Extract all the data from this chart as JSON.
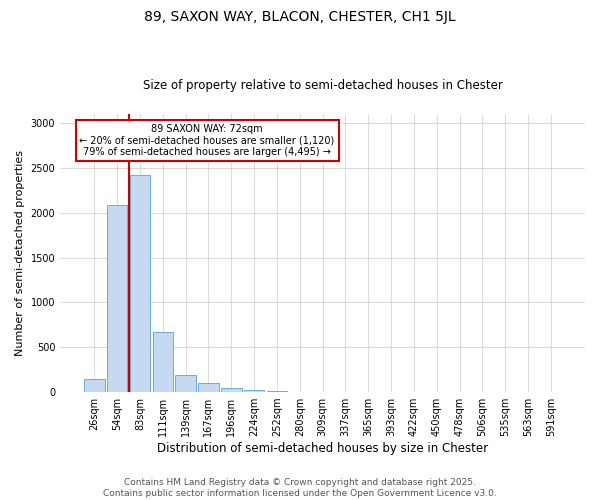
{
  "title": "89, SAXON WAY, BLACON, CHESTER, CH1 5JL",
  "subtitle": "Size of property relative to semi-detached houses in Chester",
  "xlabel": "Distribution of semi-detached houses by size in Chester",
  "ylabel": "Number of semi-detached properties",
  "bar_labels": [
    "26sqm",
    "54sqm",
    "83sqm",
    "111sqm",
    "139sqm",
    "167sqm",
    "196sqm",
    "224sqm",
    "252sqm",
    "280sqm",
    "309sqm",
    "337sqm",
    "365sqm",
    "393sqm",
    "422sqm",
    "450sqm",
    "478sqm",
    "506sqm",
    "535sqm",
    "563sqm",
    "591sqm"
  ],
  "bar_values": [
    150,
    2090,
    2420,
    670,
    185,
    100,
    50,
    20,
    10,
    5,
    2,
    1,
    1,
    0,
    0,
    0,
    0,
    0,
    0,
    0,
    0
  ],
  "bar_color": "#c5d9f0",
  "bar_edge_color": "#6aaed6",
  "property_size": 72,
  "annotation_title": "89 SAXON WAY: 72sqm",
  "annotation_line1": "← 20% of semi-detached houses are smaller (1,120)",
  "annotation_line2": "79% of semi-detached houses are larger (4,495) →",
  "annotation_box_color": "#ffffff",
  "annotation_box_edge": "#cc0000",
  "vline_color": "#cc0000",
  "vline_x": 1.5,
  "ylim": [
    0,
    3100
  ],
  "yticks": [
    0,
    500,
    1000,
    1500,
    2000,
    2500,
    3000
  ],
  "footer1": "Contains HM Land Registry data © Crown copyright and database right 2025.",
  "footer2": "Contains public sector information licensed under the Open Government Licence v3.0.",
  "grid_color": "#cccccc",
  "background_color": "#ffffff",
  "title_fontsize": 10,
  "subtitle_fontsize": 8.5,
  "ylabel_fontsize": 8,
  "xlabel_fontsize": 8.5,
  "tick_fontsize": 7,
  "footer_fontsize": 6.5
}
